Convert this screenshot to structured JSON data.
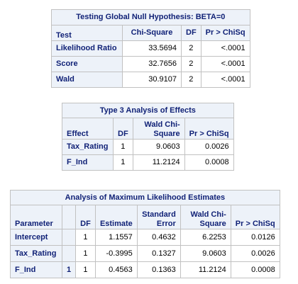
{
  "global_null": {
    "caption": "Testing Global Null Hypothesis: BETA=0",
    "headers": [
      "Test",
      "Chi-Square",
      "DF",
      "Pr > ChiSq"
    ],
    "rows": [
      {
        "test": "Likelihood Ratio",
        "chisq": "33.5694",
        "df": "2",
        "p": "<.0001"
      },
      {
        "test": "Score",
        "chisq": "32.7656",
        "df": "2",
        "p": "<.0001"
      },
      {
        "test": "Wald",
        "chisq": "30.9107",
        "df": "2",
        "p": "<.0001"
      }
    ]
  },
  "type3": {
    "caption": "Type 3 Analysis of Effects",
    "headers": [
      "Effect",
      "DF",
      "Wald Chi-Square",
      "Pr > ChiSq"
    ],
    "rows": [
      {
        "effect": "Tax_Rating",
        "df": "1",
        "chisq": "9.0603",
        "p": "0.0026"
      },
      {
        "effect": "F_Ind",
        "df": "1",
        "chisq": "11.2124",
        "p": "0.0008"
      }
    ]
  },
  "mle": {
    "caption": "Analysis of Maximum Likelihood Estimates",
    "headers": [
      "Parameter",
      "",
      "DF",
      "Estimate",
      "Standard Error",
      "Wald Chi-Square",
      "Pr > ChiSq"
    ],
    "rows": [
      {
        "param": "Intercept",
        "level": "",
        "df": "1",
        "estimate": "1.1557",
        "se": "0.4632",
        "chisq": "6.2253",
        "p": "0.0126"
      },
      {
        "param": "Tax_Rating",
        "level": "",
        "df": "1",
        "estimate": "-0.3995",
        "se": "0.1327",
        "chisq": "9.0603",
        "p": "0.0026"
      },
      {
        "param": "F_Ind",
        "level": "1",
        "df": "1",
        "estimate": "0.4563",
        "se": "0.1363",
        "chisq": "11.2124",
        "p": "0.0008"
      }
    ]
  }
}
